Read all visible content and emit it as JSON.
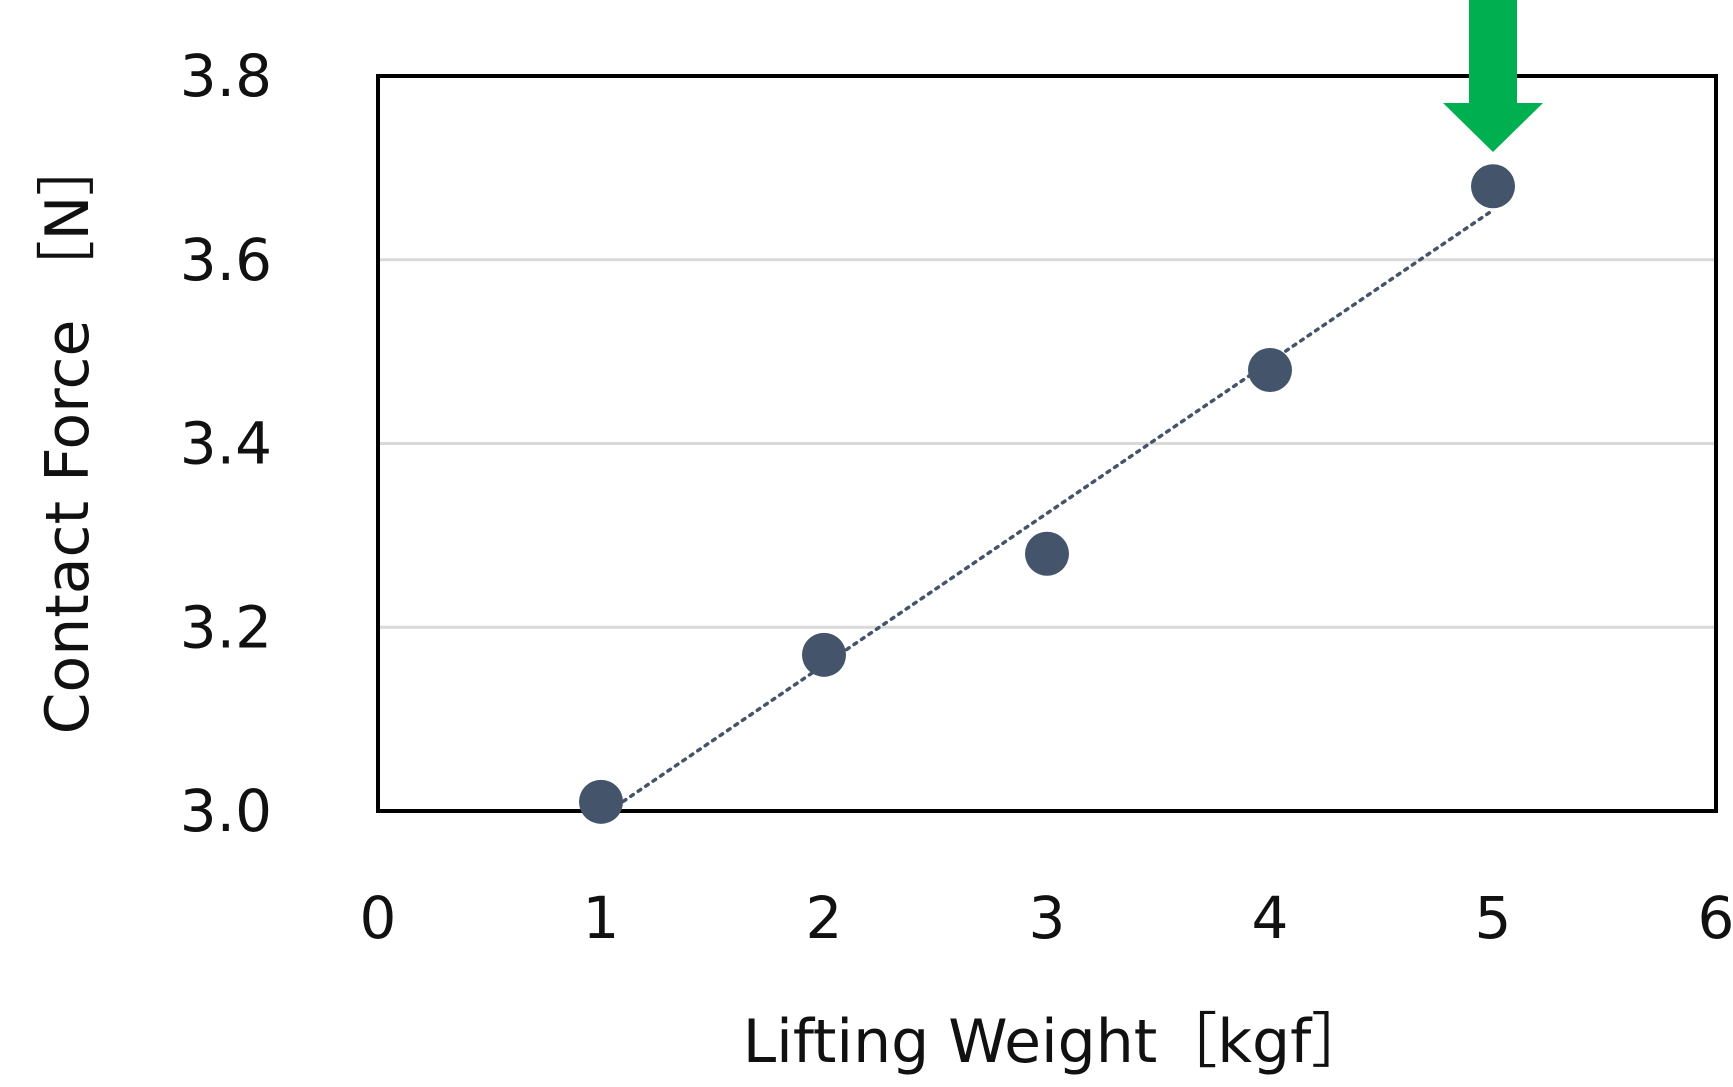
{
  "chart_data": {
    "type": "scatter",
    "xlabel": "Lifting Weight［kgf］",
    "ylabel": "Contact Force ［N］",
    "xlim": [
      0,
      6
    ],
    "ylim": [
      3.0,
      3.8
    ],
    "x_ticks": [
      "0",
      "1",
      "2",
      "3",
      "4",
      "5",
      "6"
    ],
    "y_ticks": [
      "3.0",
      "3.2",
      "3.4",
      "3.6",
      "3.8"
    ],
    "grid": "horizontal",
    "trendline": "linear, dotted",
    "series": [
      {
        "x": [
          1,
          2,
          3,
          4,
          5
        ],
        "y": [
          3.01,
          3.17,
          3.28,
          3.48,
          3.68
        ]
      }
    ],
    "annotation": {
      "type": "arrow-down",
      "target_x": 5,
      "color": "#00b050"
    },
    "colors": {
      "marker": "#44546a",
      "trendline": "#44546a",
      "grid": "#d9d9d9",
      "frame": "#000000"
    }
  }
}
